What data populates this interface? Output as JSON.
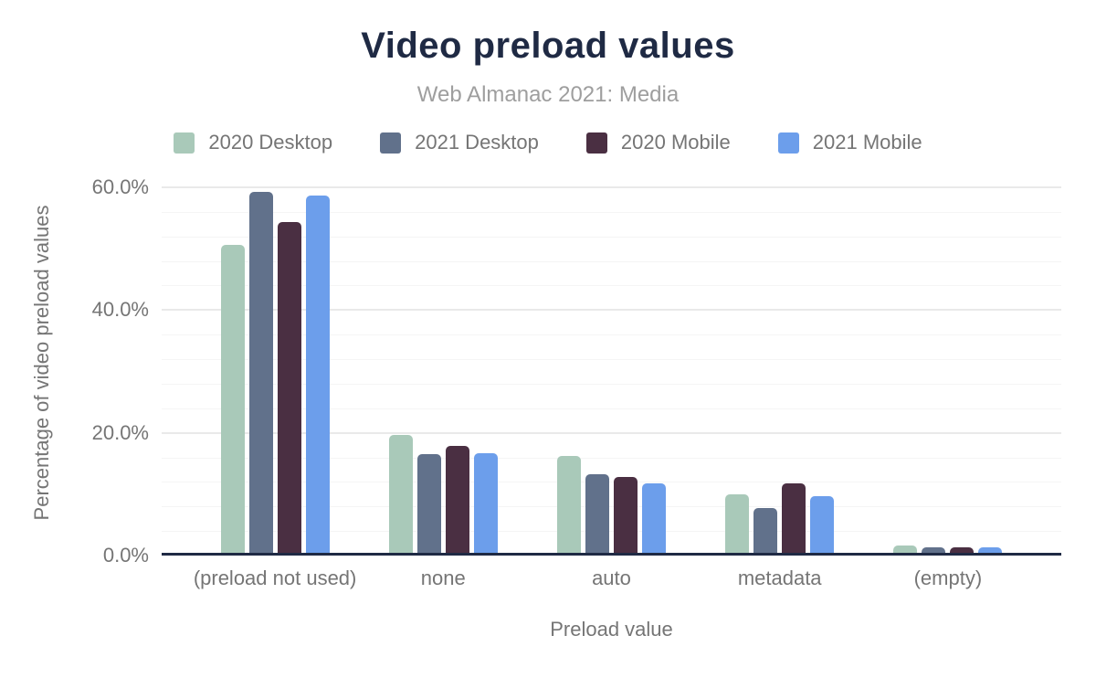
{
  "header": {
    "title": "Video preload values",
    "subtitle": "Web Almanac 2021: Media"
  },
  "chart_data": {
    "type": "bar",
    "title": "Video preload values",
    "subtitle": "Web Almanac 2021: Media",
    "categories": [
      "(preload not used)",
      "none",
      "auto",
      "metadata",
      "(empty)"
    ],
    "series": [
      {
        "name": "2020 Desktop",
        "color": "#A9C9B9",
        "values": [
          50.6,
          19.7,
          16.3,
          10.0,
          1.7
        ]
      },
      {
        "name": "2021 Desktop",
        "color": "#61718B",
        "values": [
          59.2,
          16.6,
          13.3,
          7.7,
          1.3
        ]
      },
      {
        "name": "2020 Mobile",
        "color": "#4A2F42",
        "values": [
          54.3,
          17.8,
          12.8,
          11.8,
          1.4
        ]
      },
      {
        "name": "2021 Mobile",
        "color": "#6C9EEB",
        "values": [
          58.6,
          16.7,
          11.8,
          9.7,
          1.4
        ]
      }
    ],
    "xlabel": "Preload value",
    "ylabel": "Percentage of video preload values",
    "ylim": [
      0,
      60
    ],
    "y_ticks": [
      {
        "value": 0,
        "label": "0.0%"
      },
      {
        "value": 20,
        "label": "20.0%"
      },
      {
        "value": 40,
        "label": "40.0%"
      },
      {
        "value": 60,
        "label": "60.0%"
      }
    ],
    "grid": {
      "major_step": 20,
      "minor_step": 4,
      "horizontal": true
    },
    "legend_position": "top"
  },
  "colors": {
    "title": "#1F2A44",
    "subtitle": "#9E9E9E",
    "axis_labels": "#757575",
    "axis_line": "#1F2A44",
    "gridline_major": "#e9e9e9",
    "gridline_minor": "#f5f5f5"
  }
}
